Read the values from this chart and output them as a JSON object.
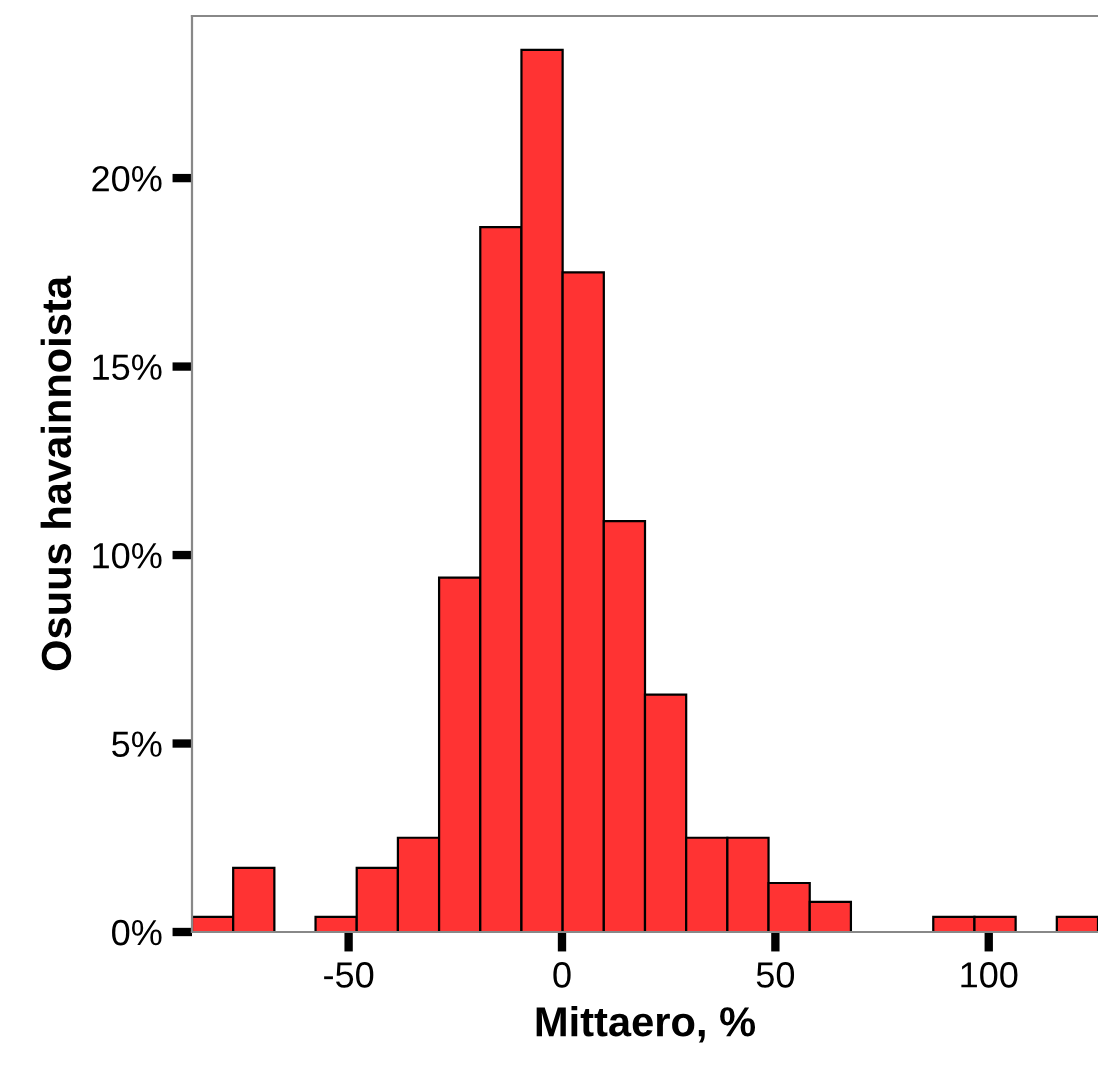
{
  "chart_data": {
    "type": "histogram",
    "xlabel": "Mittaero, %",
    "ylabel": "Osuus havainnoista",
    "bins": [
      -86.7,
      -77.05,
      -67.4,
      -57.75,
      -48.1,
      -38.45,
      -28.8,
      -19.15,
      -9.5,
      0.15,
      9.8,
      19.45,
      29.1,
      38.75,
      48.4,
      58.05,
      67.7,
      77.35,
      87.0,
      96.65,
      106.3,
      115.95,
      125.6
    ],
    "values": [
      0.4,
      1.7,
      0,
      0.4,
      1.7,
      2.5,
      9.4,
      18.7,
      23.4,
      17.5,
      10.9,
      6.3,
      2.5,
      2.5,
      1.3,
      0.8,
      0,
      0,
      0.4,
      0.4,
      0,
      0.4
    ],
    "color": "#ff3333",
    "xlim": [
      -86.7,
      125.6
    ],
    "xticks": [
      -50,
      0,
      50,
      100
    ],
    "ylim": [
      0,
      24.3
    ],
    "yticks": [
      {
        "value": 0,
        "label": "0%"
      },
      {
        "value": 5,
        "label": "5%"
      },
      {
        "value": 10,
        "label": "10%"
      },
      {
        "value": 15,
        "label": "15%"
      },
      {
        "value": 20,
        "label": "20%"
      }
    ],
    "grid": false
  }
}
